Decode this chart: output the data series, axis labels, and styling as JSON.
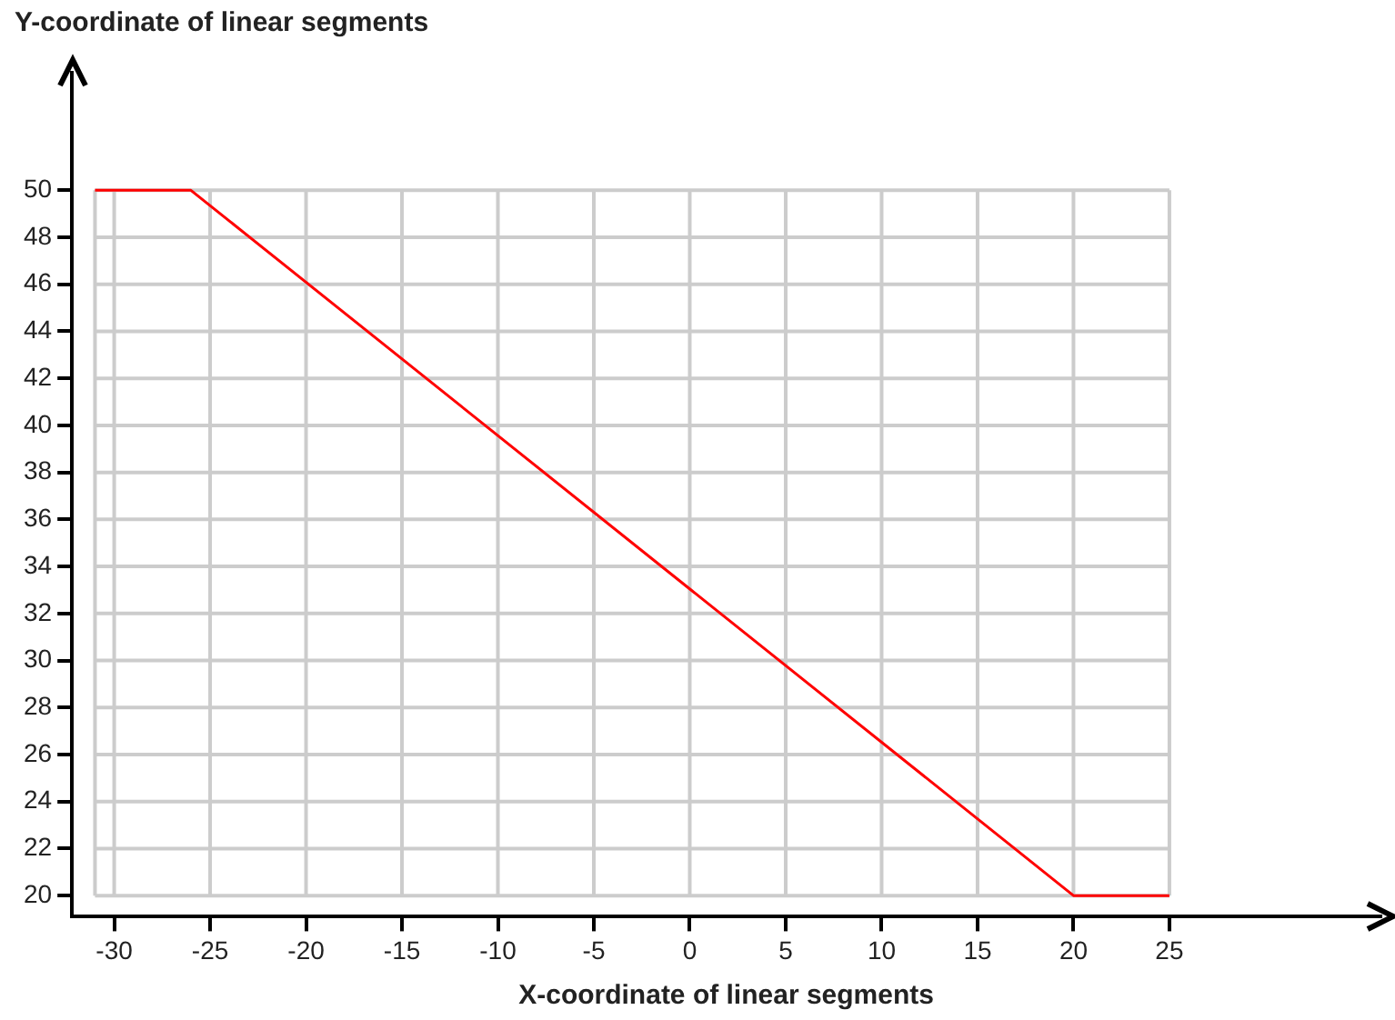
{
  "chart_data": {
    "type": "line",
    "xlabel": "X-coordinate of linear segments",
    "ylabel": "Y-coordinate of linear segments",
    "series": [
      {
        "color": "#ff0000",
        "x": [
          -31,
          -26,
          20,
          25
        ],
        "values": [
          50,
          50,
          20,
          20
        ]
      }
    ],
    "xlim": [
      -32.2,
      36
    ],
    "ylim": [
      19.1,
      55
    ],
    "xticks": [
      -30,
      -25,
      -20,
      -15,
      -10,
      -5,
      0,
      5,
      10,
      15,
      20,
      25
    ],
    "yticks": [
      20,
      22,
      24,
      26,
      28,
      30,
      32,
      34,
      36,
      38,
      40,
      42,
      44,
      46,
      48,
      50
    ],
    "grid": true,
    "legend": false,
    "marker": "none",
    "line_style": "solid"
  }
}
